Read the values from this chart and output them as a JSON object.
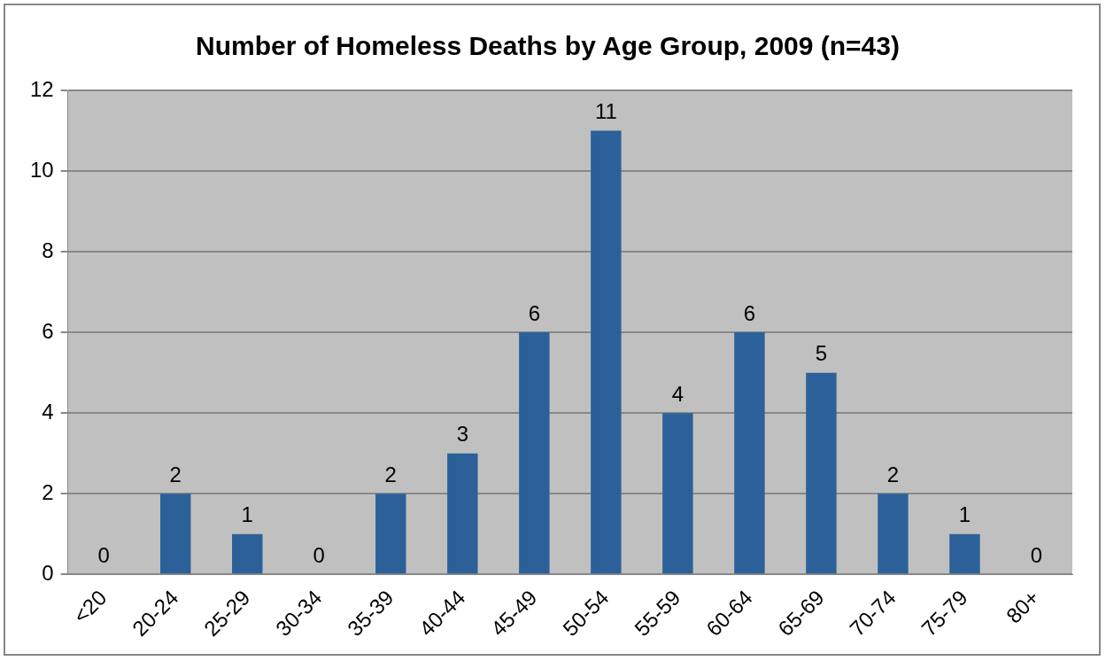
{
  "chart_data": {
    "type": "bar",
    "title": "Number of Homeless Deaths by Age Group, 2009 (n=43)",
    "categories": [
      "<20",
      "20-24",
      "25-29",
      "30-34",
      "35-39",
      "40-44",
      "45-49",
      "50-54",
      "55-59",
      "60-64",
      "65-69",
      "70-74",
      "75-79",
      "80+"
    ],
    "values": [
      0,
      2,
      1,
      0,
      2,
      3,
      6,
      11,
      4,
      6,
      5,
      2,
      1,
      0
    ],
    "color": "#2b6198",
    "ylim": [
      0,
      12
    ],
    "yticks": [
      0,
      2,
      4,
      6,
      8,
      10,
      12
    ],
    "grid": "y",
    "legend": false,
    "data_labels": true
  }
}
